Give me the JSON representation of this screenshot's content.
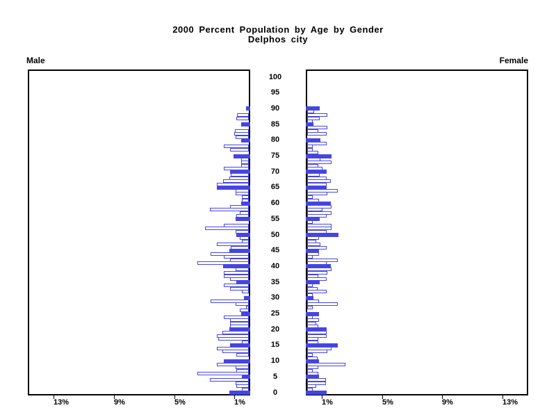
{
  "title": {
    "line1": "2000 Percent Population by Age by Gender",
    "line2": "Delphos city"
  },
  "chart_data": {
    "type": "bar",
    "subtype": "population-pyramid",
    "title": "2000 Percent Population by Age by Gender",
    "subtitle": "Delphos city",
    "left_series_label": "Male",
    "right_series_label": "Female",
    "age_axis": {
      "min": 0,
      "max": 100,
      "tick_step": 5,
      "tick_labels": [
        "0",
        "5",
        "10",
        "15",
        "20",
        "25",
        "30",
        "35",
        "40",
        "45",
        "50",
        "55",
        "60",
        "65",
        "70",
        "75",
        "80",
        "85",
        "90",
        "95",
        "100"
      ]
    },
    "percent_axis": {
      "tick_values": [
        1,
        5,
        9,
        13
      ],
      "tick_labels": [
        "1%",
        "5%",
        "9%",
        "13%"
      ],
      "max": 14.7
    },
    "highlight_every_n_years": 5,
    "ages": [
      0,
      1,
      2,
      3,
      4,
      5,
      6,
      7,
      8,
      9,
      10,
      11,
      12,
      13,
      14,
      15,
      16,
      17,
      18,
      19,
      20,
      21,
      22,
      23,
      24,
      25,
      26,
      27,
      28,
      29,
      30,
      31,
      32,
      33,
      34,
      35,
      36,
      37,
      38,
      39,
      40,
      41,
      42,
      43,
      44,
      45,
      46,
      47,
      48,
      49,
      50,
      51,
      52,
      53,
      54,
      55,
      56,
      57,
      58,
      59,
      60,
      61,
      62,
      63,
      64,
      65,
      66,
      67,
      68,
      69,
      70,
      71,
      72,
      73,
      74,
      75,
      76,
      77,
      78,
      79,
      80,
      81,
      82,
      83,
      84,
      85,
      86,
      87,
      88,
      89,
      90,
      91,
      92,
      93,
      94,
      95,
      96,
      97,
      98,
      99,
      100
    ],
    "series": [
      {
        "name": "Male",
        "values": [
          1.3,
          0.46,
          0.84,
          0.87,
          2.56,
          0.46,
          3.41,
          0.84,
          0.87,
          2.1,
          1.64,
          0,
          0.84,
          1.74,
          2.1,
          1.23,
          0.46,
          2.05,
          2.1,
          1.74,
          1.3,
          1.23,
          1.23,
          1.23,
          1.66,
          0.49,
          0.61,
          0.2,
          0.87,
          2.53,
          0.3,
          0,
          0.46,
          1.23,
          1.64,
          0.84,
          1.23,
          1.66,
          1.66,
          0.87,
          1.69,
          3.41,
          1.23,
          1.64,
          2.53,
          1.3,
          1.22,
          2.1,
          0.46,
          0.61,
          0.84,
          0.87,
          2.92,
          1.64,
          0,
          0.87,
          0.84,
          0.58,
          2.56,
          1.26,
          0.49,
          0.46,
          0.46,
          0.87,
          0.87,
          2.1,
          2.1,
          1.69,
          1.27,
          1.2,
          1.24,
          1.66,
          0.5,
          0.49,
          0.49,
          1.0,
          0,
          1.26,
          1.66,
          0,
          0.5,
          0.86,
          0.97,
          0.92,
          0,
          0.49,
          0,
          0.84,
          0.8,
          0,
          0.2,
          0,
          0,
          0,
          0,
          0,
          0,
          0,
          0,
          0,
          0
        ]
      },
      {
        "name": "Female",
        "values": [
          1.28,
          0.38,
          0.61,
          1.23,
          1.23,
          0.8,
          0.76,
          0.38,
          0.76,
          2.53,
          0.8,
          0.69,
          0.38,
          1.35,
          1.61,
          2.04,
          0.76,
          0.76,
          1.28,
          1.28,
          1.28,
          0.76,
          0.61,
          0.8,
          0.38,
          0.8,
          0,
          0.38,
          2.04,
          0.8,
          0.41,
          0.38,
          1.28,
          0.69,
          0.38,
          0.82,
          1.28,
          0.76,
          1.35,
          1.61,
          1.58,
          1.28,
          2.04,
          0.38,
          0.8,
          0.8,
          1.28,
          0.89,
          0.61,
          0.8,
          2.07,
          1.28,
          1.61,
          1.61,
          0.38,
          0.82,
          1.28,
          1.61,
          1.0,
          1.61,
          1.58,
          0.8,
          0.38,
          1.35,
          2.04,
          1.28,
          1.31,
          1.57,
          1.29,
          0.82,
          1.28,
          1.0,
          0.76,
          1.61,
          0.89,
          1.61,
          0.76,
          0.38,
          0.35,
          1.28,
          0.89,
          0,
          1.29,
          0.76,
          1.35,
          0.4,
          0.35,
          0.82,
          1.35,
          0.46,
          0.84,
          0,
          0,
          0,
          0,
          0,
          0,
          0,
          0,
          0,
          0
        ]
      }
    ],
    "colors": {
      "bar_fill": "#4545E2",
      "bar_outline": "#4545E2",
      "bar_open_fill": "#FFFFFF",
      "axis": "#000000",
      "text": "#000000",
      "background": "#FFFFFF"
    },
    "legend_position": "none",
    "grid": false
  }
}
